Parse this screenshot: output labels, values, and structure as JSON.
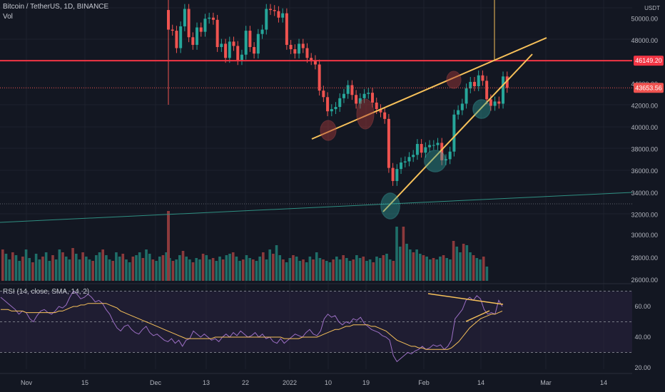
{
  "header": {
    "symbol_line": "Bitcoin / TetherUS, 1D, BINANCE",
    "volume_label": "Vol",
    "rsi_label": "RSI (14, close, SMA, 14, 2)",
    "currency": "USDT"
  },
  "colors": {
    "background": "#131722",
    "up": "#26a69a",
    "down": "#ef5350",
    "vol_up": "#1f6f69",
    "vol_down": "#8c3a3c",
    "hline": "#f23645",
    "trend": "#f7c15a",
    "support": "#2f8f82",
    "rsi": "#9c6fc4",
    "rsi_ma": "#f7c15a",
    "rsi_band": "#2a2240",
    "highlight_red": "#a83a3a",
    "highlight_green": "#2fa5a0"
  },
  "chart_data": {
    "type": "candlestick",
    "price_axis": {
      "ticks": [
        "50000.00",
        "48000.00",
        "44000.00",
        "42000.00",
        "40000.00",
        "38000.00",
        "36000.00",
        "34000.00",
        "32000.00",
        "30000.00",
        "28000.00",
        "26000.00"
      ],
      "range": [
        25500,
        51500
      ]
    },
    "volume_axis_ticks": [
      "30000.00",
      "28000.00",
      "26000.00"
    ],
    "rsi_axis": {
      "ticks": [
        "60.00",
        "40.00",
        "20.00"
      ],
      "range": [
        15,
        75
      ],
      "upper": 70,
      "lower": 30,
      "mid": 50
    },
    "x_labels": [
      "Nov",
      "15",
      "Dec",
      "13",
      "22",
      "2022",
      "10",
      "19",
      "Feb",
      "14",
      "Mar",
      "14"
    ],
    "horizontal_lines": [
      {
        "price": 46149.2,
        "label": "46149.20"
      },
      {
        "price": 43653.56,
        "label": "43653.56"
      }
    ],
    "last_price": 43653.56,
    "candles_early": [
      [
        50700,
        49600
      ],
      [
        49600,
        48700
      ],
      [
        48700,
        49400
      ],
      [
        49400,
        48900
      ],
      [
        48900,
        48300
      ],
      [
        48300,
        47800
      ],
      [
        47800,
        47900
      ],
      [
        47900,
        47000
      ],
      [
        47000,
        48300
      ],
      [
        48300,
        48000
      ],
      [
        48000,
        48200
      ],
      [
        48200,
        47100
      ],
      [
        47100,
        46800
      ],
      [
        46800,
        48700
      ],
      [
        48700,
        48900
      ],
      [
        48900,
        49200
      ],
      [
        49200,
        50100
      ],
      [
        50100,
        50800
      ]
    ],
    "candles": [
      [
        50800,
        49000
      ],
      [
        49000,
        48900
      ],
      [
        48900,
        47300
      ],
      [
        47300,
        49300
      ],
      [
        49300,
        50900
      ],
      [
        50900,
        48300
      ],
      [
        48300,
        47600
      ],
      [
        47600,
        49200
      ],
      [
        49200,
        48800
      ],
      [
        48800,
        50000
      ],
      [
        50000,
        50100
      ],
      [
        50100,
        49900
      ],
      [
        49900,
        47400
      ],
      [
        47400,
        47700
      ],
      [
        47700,
        46400
      ],
      [
        46400,
        47900
      ],
      [
        47900,
        47500
      ],
      [
        47500,
        46200
      ],
      [
        46200,
        46700
      ],
      [
        46700,
        48900
      ],
      [
        48900,
        47400
      ],
      [
        47400,
        46800
      ],
      [
        46800,
        48600
      ],
      [
        48600,
        49000
      ],
      [
        49000,
        50900
      ],
      [
        50900,
        50800
      ],
      [
        50800,
        50700
      ],
      [
        50700,
        50100
      ],
      [
        50100,
        50500
      ],
      [
        50500,
        47600
      ],
      [
        47600,
        47200
      ],
      [
        47200,
        46800
      ],
      [
        46800,
        47700
      ],
      [
        47700,
        47300
      ],
      [
        47300,
        46400
      ],
      [
        46400,
        46200
      ],
      [
        46200,
        45800
      ],
      [
        45800,
        43400
      ],
      [
        43400,
        42800
      ],
      [
        42800,
        41500
      ],
      [
        41500,
        41700
      ],
      [
        41700,
        41900
      ],
      [
        41900,
        42700
      ],
      [
        42700,
        43100
      ],
      [
        43100,
        43900
      ],
      [
        43900,
        43000
      ],
      [
        43000,
        42200
      ],
      [
        42200,
        42700
      ],
      [
        42700,
        43100
      ],
      [
        43100,
        43200
      ],
      [
        43200,
        42300
      ],
      [
        42300,
        41700
      ],
      [
        41700,
        41400
      ],
      [
        41400,
        40800
      ],
      [
        40800,
        36300
      ],
      [
        36300,
        35100
      ],
      [
        35100,
        36200
      ],
      [
        36200,
        36800
      ],
      [
        36800,
        36900
      ],
      [
        36900,
        37300
      ],
      [
        37300,
        37500
      ],
      [
        37500,
        38500
      ],
      [
        38500,
        37700
      ],
      [
        37700,
        38200
      ],
      [
        38200,
        38400
      ],
      [
        38400,
        38400
      ],
      [
        38400,
        38600
      ],
      [
        38600,
        37000
      ],
      [
        37000,
        37100
      ],
      [
        37100,
        37800
      ],
      [
        37800,
        41200
      ],
      [
        41200,
        41600
      ],
      [
        41600,
        42200
      ],
      [
        42200,
        43600
      ],
      [
        43600,
        44200
      ],
      [
        44200,
        43800
      ],
      [
        43800,
        44800
      ],
      [
        44800,
        44300
      ],
      [
        44300,
        42600
      ],
      [
        42600,
        42000
      ],
      [
        42000,
        42400
      ],
      [
        42400,
        42200
      ],
      [
        42200,
        44700
      ],
      [
        44700,
        43650
      ]
    ],
    "rsi_values": [
      66,
      64,
      62,
      60,
      58,
      55,
      57,
      56,
      52,
      50,
      54,
      57,
      58,
      56,
      55,
      57,
      60,
      59,
      61,
      66,
      70,
      68,
      65,
      66,
      68,
      66,
      63,
      64,
      62,
      58,
      55,
      50,
      46,
      44,
      47,
      48,
      45,
      43,
      42,
      45,
      47,
      43,
      41,
      42,
      40,
      38,
      37,
      39,
      36,
      38,
      34,
      38,
      39,
      44,
      42,
      40,
      42,
      40,
      38,
      39,
      37,
      40,
      42,
      40,
      43,
      41,
      44,
      42,
      40,
      41,
      43,
      40,
      42,
      39,
      40,
      37,
      36,
      39,
      36,
      38,
      40,
      42,
      41,
      40,
      43,
      45,
      42,
      41,
      44,
      52,
      55,
      53,
      54,
      50,
      48,
      50,
      49,
      52,
      51,
      53,
      49,
      47,
      45,
      44,
      43,
      41,
      40,
      38,
      28,
      24,
      26,
      28,
      30,
      29,
      31,
      32,
      34,
      32,
      33,
      35,
      34,
      35,
      32,
      34,
      38,
      52,
      55,
      58,
      64,
      66,
      64,
      67,
      65,
      58,
      55,
      56,
      55,
      64,
      60
    ],
    "rsi_ma_values": [
      58,
      58,
      58,
      57,
      57,
      57,
      57,
      56,
      56,
      56,
      56,
      56,
      56,
      56,
      56,
      56,
      57,
      57,
      58,
      59,
      60,
      60,
      61,
      61,
      62,
      62,
      62,
      62,
      62,
      62,
      61,
      60,
      59,
      57,
      56,
      55,
      54,
      53,
      52,
      51,
      50,
      49,
      48,
      47,
      46,
      45,
      44,
      43,
      42,
      41,
      40,
      39,
      39,
      39,
      39,
      39,
      39,
      39,
      39,
      40,
      40,
      40,
      40,
      40,
      40,
      40,
      40,
      40,
      40,
      40,
      40,
      40,
      40,
      40,
      40,
      40,
      40,
      40,
      39,
      39,
      39,
      39,
      39,
      40,
      40,
      40,
      40,
      40,
      41,
      42,
      43,
      44,
      45,
      45,
      46,
      47,
      47,
      48,
      48,
      48,
      48,
      48,
      47,
      47,
      46,
      45,
      44,
      42,
      40,
      38,
      37,
      36,
      35,
      34,
      34,
      33,
      33,
      32,
      32,
      32,
      32,
      32,
      32,
      32,
      33,
      35,
      37,
      40,
      43,
      46,
      48,
      50,
      52,
      53,
      54,
      55,
      55,
      56,
      57
    ]
  }
}
